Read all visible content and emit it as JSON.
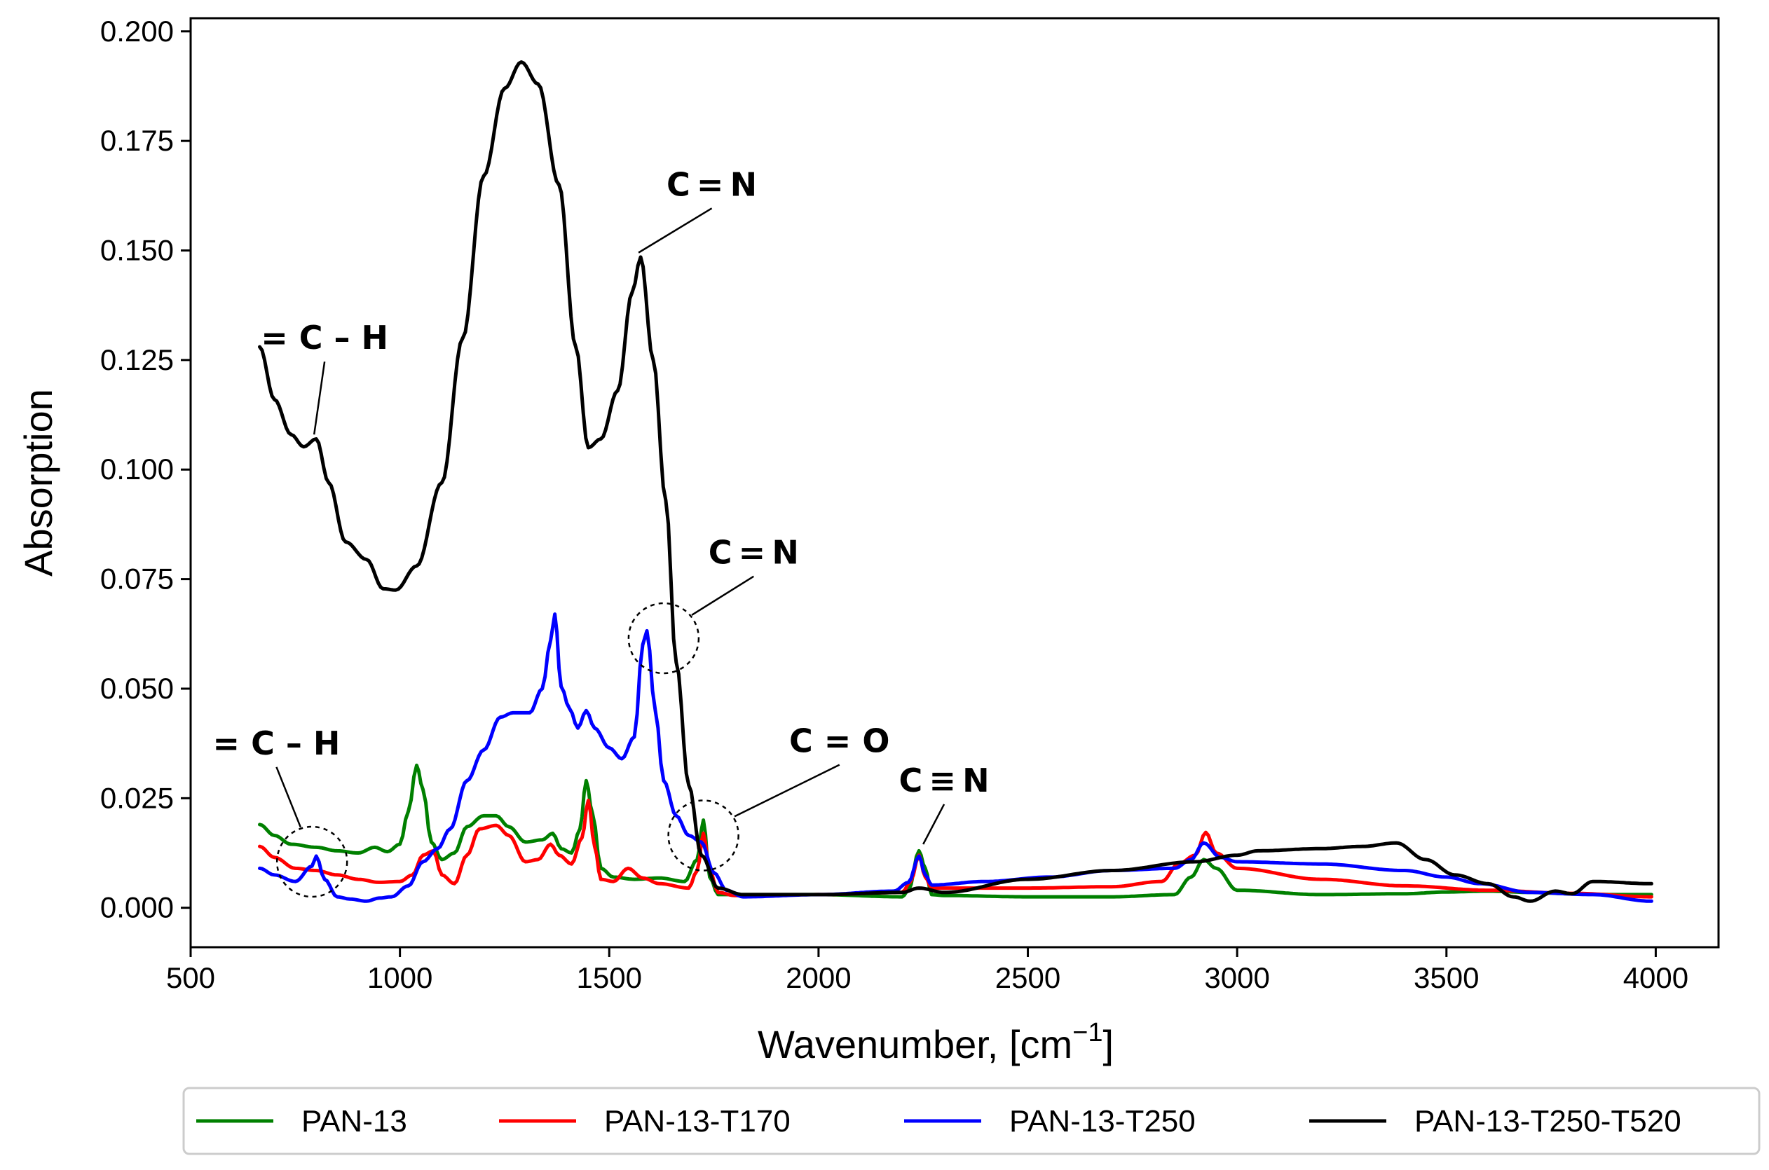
{
  "chart_data": {
    "type": "line",
    "title": "",
    "xlabel": "Wavenumber, [cm",
    "xlabel_sup": "−1",
    "xlabel_close": "]",
    "ylabel": "Absorption",
    "xlim": [
      500,
      4150
    ],
    "ylim": [
      -0.009,
      0.203
    ],
    "xticks": [
      500,
      1000,
      1500,
      2000,
      2500,
      3000,
      3500,
      4000
    ],
    "xtick_labels": [
      "500",
      "1000",
      "1500",
      "2000",
      "2500",
      "3000",
      "3500",
      "4000"
    ],
    "yticks": [
      0.0,
      0.025,
      0.05,
      0.075,
      0.1,
      0.125,
      0.15,
      0.175,
      0.2
    ],
    "ytick_labels": [
      "0.000",
      "0.025",
      "0.050",
      "0.075",
      "0.100",
      "0.125",
      "0.150",
      "0.175",
      "0.200"
    ],
    "grid": false,
    "legend_position": "bottom-outside",
    "series": [
      {
        "name": "PAN-13",
        "color": "#008000",
        "points": [
          [
            665,
            0.019
          ],
          [
            700,
            0.0165
          ],
          [
            740,
            0.0145
          ],
          [
            800,
            0.0138
          ],
          [
            850,
            0.013
          ],
          [
            900,
            0.0125
          ],
          [
            940,
            0.0138
          ],
          [
            970,
            0.0128
          ],
          [
            1000,
            0.0145
          ],
          [
            1020,
            0.022
          ],
          [
            1040,
            0.0325
          ],
          [
            1055,
            0.027
          ],
          [
            1075,
            0.015
          ],
          [
            1100,
            0.011
          ],
          [
            1130,
            0.0125
          ],
          [
            1160,
            0.0185
          ],
          [
            1200,
            0.021
          ],
          [
            1230,
            0.021
          ],
          [
            1260,
            0.0185
          ],
          [
            1300,
            0.015
          ],
          [
            1340,
            0.0155
          ],
          [
            1365,
            0.017
          ],
          [
            1385,
            0.0135
          ],
          [
            1410,
            0.0125
          ],
          [
            1430,
            0.018
          ],
          [
            1445,
            0.029
          ],
          [
            1460,
            0.0215
          ],
          [
            1480,
            0.009
          ],
          [
            1510,
            0.007
          ],
          [
            1560,
            0.0065
          ],
          [
            1620,
            0.0068
          ],
          [
            1680,
            0.006
          ],
          [
            1710,
            0.011
          ],
          [
            1725,
            0.02
          ],
          [
            1740,
            0.007
          ],
          [
            1760,
            0.003
          ],
          [
            1800,
            0.003
          ],
          [
            2000,
            0.003
          ],
          [
            2200,
            0.0025
          ],
          [
            2215,
            0.004
          ],
          [
            2240,
            0.013
          ],
          [
            2255,
            0.009
          ],
          [
            2270,
            0.003
          ],
          [
            2300,
            0.0028
          ],
          [
            2500,
            0.0025
          ],
          [
            2700,
            0.0025
          ],
          [
            2850,
            0.003
          ],
          [
            2890,
            0.007
          ],
          [
            2920,
            0.011
          ],
          [
            2950,
            0.009
          ],
          [
            3000,
            0.004
          ],
          [
            3200,
            0.003
          ],
          [
            3400,
            0.0032
          ],
          [
            3500,
            0.0036
          ],
          [
            3600,
            0.0038
          ],
          [
            3700,
            0.0035
          ],
          [
            3800,
            0.0032
          ],
          [
            3900,
            0.003
          ],
          [
            3990,
            0.003
          ]
        ]
      },
      {
        "name": "PAN-13-T170",
        "color": "#ff0000",
        "points": [
          [
            665,
            0.014
          ],
          [
            700,
            0.0115
          ],
          [
            750,
            0.009
          ],
          [
            800,
            0.0085
          ],
          [
            850,
            0.0075
          ],
          [
            900,
            0.0065
          ],
          [
            950,
            0.0058
          ],
          [
            1000,
            0.006
          ],
          [
            1030,
            0.0075
          ],
          [
            1055,
            0.012
          ],
          [
            1080,
            0.013
          ],
          [
            1100,
            0.0075
          ],
          [
            1130,
            0.0055
          ],
          [
            1160,
            0.012
          ],
          [
            1190,
            0.018
          ],
          [
            1230,
            0.0188
          ],
          [
            1260,
            0.0165
          ],
          [
            1300,
            0.0105
          ],
          [
            1330,
            0.011
          ],
          [
            1360,
            0.0145
          ],
          [
            1380,
            0.012
          ],
          [
            1410,
            0.01
          ],
          [
            1435,
            0.016
          ],
          [
            1450,
            0.0245
          ],
          [
            1465,
            0.014
          ],
          [
            1480,
            0.0065
          ],
          [
            1510,
            0.006
          ],
          [
            1545,
            0.009
          ],
          [
            1580,
            0.0068
          ],
          [
            1620,
            0.0055
          ],
          [
            1690,
            0.0045
          ],
          [
            1710,
            0.0085
          ],
          [
            1725,
            0.017
          ],
          [
            1740,
            0.0085
          ],
          [
            1760,
            0.0035
          ],
          [
            1800,
            0.0028
          ],
          [
            2000,
            0.003
          ],
          [
            2200,
            0.0035
          ],
          [
            2220,
            0.006
          ],
          [
            2240,
            0.012
          ],
          [
            2255,
            0.007
          ],
          [
            2270,
            0.0045
          ],
          [
            2300,
            0.0045
          ],
          [
            2500,
            0.0045
          ],
          [
            2700,
            0.0048
          ],
          [
            2820,
            0.006
          ],
          [
            2860,
            0.01
          ],
          [
            2900,
            0.012
          ],
          [
            2925,
            0.0172
          ],
          [
            2950,
            0.0125
          ],
          [
            3000,
            0.009
          ],
          [
            3200,
            0.0065
          ],
          [
            3400,
            0.005
          ],
          [
            3600,
            0.004
          ],
          [
            3800,
            0.0033
          ],
          [
            3990,
            0.0025
          ]
        ]
      },
      {
        "name": "PAN-13-T250",
        "color": "#0000ff",
        "points": [
          [
            665,
            0.009
          ],
          [
            700,
            0.0075
          ],
          [
            750,
            0.006
          ],
          [
            790,
            0.0095
          ],
          [
            800,
            0.0118
          ],
          [
            820,
            0.0065
          ],
          [
            850,
            0.0025
          ],
          [
            880,
            0.002
          ],
          [
            920,
            0.0015
          ],
          [
            950,
            0.0022
          ],
          [
            980,
            0.0025
          ],
          [
            1020,
            0.005
          ],
          [
            1055,
            0.0105
          ],
          [
            1090,
            0.0135
          ],
          [
            1120,
            0.018
          ],
          [
            1160,
            0.029
          ],
          [
            1200,
            0.036
          ],
          [
            1240,
            0.0435
          ],
          [
            1270,
            0.0445
          ],
          [
            1310,
            0.0445
          ],
          [
            1340,
            0.05
          ],
          [
            1360,
            0.061
          ],
          [
            1370,
            0.067
          ],
          [
            1385,
            0.0505
          ],
          [
            1405,
            0.0455
          ],
          [
            1425,
            0.041
          ],
          [
            1445,
            0.045
          ],
          [
            1465,
            0.041
          ],
          [
            1500,
            0.0365
          ],
          [
            1530,
            0.034
          ],
          [
            1560,
            0.039
          ],
          [
            1580,
            0.06
          ],
          [
            1590,
            0.0632
          ],
          [
            1610,
            0.045
          ],
          [
            1630,
            0.029
          ],
          [
            1660,
            0.021
          ],
          [
            1690,
            0.0165
          ],
          [
            1720,
            0.015
          ],
          [
            1750,
            0.008
          ],
          [
            1780,
            0.004
          ],
          [
            1820,
            0.0025
          ],
          [
            2000,
            0.003
          ],
          [
            2180,
            0.0038
          ],
          [
            2215,
            0.0058
          ],
          [
            2240,
            0.0118
          ],
          [
            2255,
            0.0075
          ],
          [
            2270,
            0.0052
          ],
          [
            2400,
            0.006
          ],
          [
            2550,
            0.007
          ],
          [
            2700,
            0.0085
          ],
          [
            2850,
            0.009
          ],
          [
            2890,
            0.011
          ],
          [
            2920,
            0.0148
          ],
          [
            2960,
            0.0115
          ],
          [
            3000,
            0.0105
          ],
          [
            3200,
            0.01
          ],
          [
            3400,
            0.0085
          ],
          [
            3500,
            0.007
          ],
          [
            3580,
            0.0055
          ],
          [
            3700,
            0.0035
          ],
          [
            3850,
            0.003
          ],
          [
            3990,
            0.0015
          ]
        ]
      },
      {
        "name": "PAN-13-T250-T520",
        "color": "#000000",
        "points": [
          [
            665,
            0.128
          ],
          [
            700,
            0.116
          ],
          [
            740,
            0.108
          ],
          [
            770,
            0.1052
          ],
          [
            800,
            0.107
          ],
          [
            830,
            0.097
          ],
          [
            870,
            0.0835
          ],
          [
            920,
            0.0795
          ],
          [
            960,
            0.0728
          ],
          [
            990,
            0.0725
          ],
          [
            1040,
            0.078
          ],
          [
            1100,
            0.097
          ],
          [
            1150,
            0.13
          ],
          [
            1200,
            0.167
          ],
          [
            1250,
            0.187
          ],
          [
            1290,
            0.193
          ],
          [
            1330,
            0.188
          ],
          [
            1380,
            0.165
          ],
          [
            1420,
            0.128
          ],
          [
            1450,
            0.105
          ],
          [
            1480,
            0.107
          ],
          [
            1520,
            0.118
          ],
          [
            1555,
            0.1405
          ],
          [
            1575,
            0.1485
          ],
          [
            1605,
            0.125
          ],
          [
            1635,
            0.093
          ],
          [
            1660,
            0.056
          ],
          [
            1690,
            0.028
          ],
          [
            1720,
            0.012
          ],
          [
            1760,
            0.0045
          ],
          [
            1820,
            0.003
          ],
          [
            2000,
            0.003
          ],
          [
            2200,
            0.0035
          ],
          [
            2240,
            0.0045
          ],
          [
            2300,
            0.0035
          ],
          [
            2500,
            0.0065
          ],
          [
            2700,
            0.0085
          ],
          [
            2900,
            0.0105
          ],
          [
            3000,
            0.012
          ],
          [
            3050,
            0.013
          ],
          [
            3200,
            0.0135
          ],
          [
            3300,
            0.014
          ],
          [
            3380,
            0.0148
          ],
          [
            3450,
            0.011
          ],
          [
            3520,
            0.0075
          ],
          [
            3600,
            0.0055
          ],
          [
            3660,
            0.0025
          ],
          [
            3700,
            0.0015
          ],
          [
            3760,
            0.0038
          ],
          [
            3800,
            0.0032
          ],
          [
            3850,
            0.006
          ],
          [
            3990,
            0.0055
          ]
        ]
      }
    ],
    "annotations": [
      {
        "text": "= C – H",
        "anchor": [
          795,
          0.108
        ],
        "label_at": [
          820,
          0.1275
        ],
        "circle": false
      },
      {
        "text": "C = N",
        "anchor": [
          1570,
          0.1495
        ],
        "label_at": [
          1745,
          0.1625
        ],
        "circle": false
      },
      {
        "text": "C = N",
        "anchor": [
          1630,
          0.0615
        ],
        "label_at": [
          1845,
          0.0785
        ],
        "circle": true
      },
      {
        "text": "= C – H",
        "anchor": [
          790,
          0.0105
        ],
        "label_at": [
          705,
          0.035
        ],
        "circle": true
      },
      {
        "text": "C = O",
        "anchor": [
          1725,
          0.0165
        ],
        "label_at": [
          2050,
          0.0355
        ],
        "circle": true
      },
      {
        "text": "C ≡ N",
        "anchor": [
          2250,
          0.0145
        ],
        "label_at": [
          2300,
          0.0265
        ],
        "circle": false
      }
    ]
  }
}
